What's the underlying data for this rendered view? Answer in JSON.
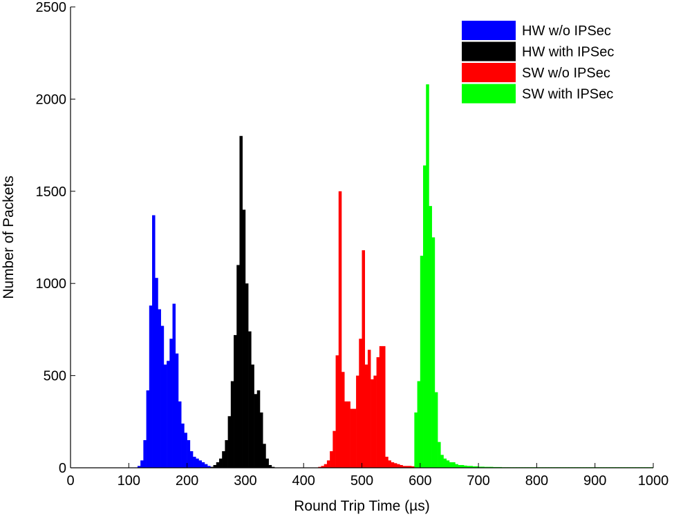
{
  "chart_data": {
    "type": "bar",
    "subtype": "histogram",
    "xlabel": "Round Trip Time (µs)",
    "ylabel": "Number of Packets",
    "xlim": [
      0,
      1000
    ],
    "ylim": [
      0,
      2500
    ],
    "xticks": [
      "0",
      "100",
      "200",
      "300",
      "400",
      "500",
      "600",
      "700",
      "800",
      "900",
      "1000"
    ],
    "yticks": [
      "0",
      "500",
      "1000",
      "1500",
      "2000",
      "2500"
    ],
    "grid": false,
    "legend_position": "top-right",
    "bin_width": 5,
    "series": [
      {
        "name": "HW w/o IPSec",
        "color": "#0000ff",
        "bins_start": 110,
        "values": [
          2,
          10,
          40,
          150,
          420,
          880,
          1370,
          1030,
          860,
          770,
          560,
          580,
          700,
          890,
          620,
          360,
          240,
          190,
          150,
          90,
          60,
          50,
          40,
          30,
          20,
          10,
          5
        ]
      },
      {
        "name": "HW with IPSec",
        "color": "#000000",
        "bins_start": 240,
        "values": [
          5,
          15,
          30,
          50,
          90,
          150,
          280,
          470,
          720,
          1100,
          1800,
          1400,
          1000,
          740,
          560,
          400,
          420,
          300,
          130,
          50,
          15,
          5
        ]
      },
      {
        "name": "SW w/o IPSec",
        "color": "#ff0000",
        "bins_start": 425,
        "values": [
          5,
          10,
          20,
          40,
          90,
          200,
          610,
          1500,
          520,
          360,
          360,
          320,
          320,
          500,
          700,
          1180,
          560,
          640,
          480,
          500,
          600,
          660,
          660,
          60,
          40,
          30,
          25,
          20,
          15,
          10,
          10,
          10,
          8,
          8,
          6,
          5,
          5,
          5,
          4,
          4,
          3,
          3,
          3,
          2,
          2,
          2,
          2,
          2,
          2,
          2,
          2,
          2,
          2,
          2,
          2,
          2,
          2,
          2,
          2,
          2,
          2,
          2,
          2,
          2,
          2,
          2,
          2,
          2,
          2,
          2,
          2,
          2,
          2,
          2,
          2,
          2,
          2,
          2,
          2,
          2,
          2,
          2,
          2,
          2,
          2,
          2,
          2,
          2,
          2,
          2,
          2,
          2,
          2,
          2,
          2,
          2,
          2,
          2,
          2,
          2,
          2,
          2,
          2,
          2,
          2,
          2,
          2,
          2,
          2,
          2,
          2,
          2,
          2,
          2,
          2,
          2
        ]
      },
      {
        "name": "SW with IPSec",
        "color": "#00ff00",
        "bins_start": 590,
        "values": [
          300,
          470,
          1150,
          1640,
          2080,
          1420,
          1250,
          410,
          140,
          70,
          50,
          40,
          30,
          30,
          20,
          15,
          15,
          12,
          10,
          10,
          8,
          8,
          6,
          6,
          5,
          5,
          5,
          4,
          4,
          4,
          3,
          3,
          3,
          3,
          3,
          3,
          3,
          3,
          3,
          3,
          3,
          3,
          3,
          3,
          3,
          3,
          3,
          3,
          3,
          3,
          3,
          3,
          3,
          3,
          3,
          3,
          3,
          3,
          3,
          3,
          3,
          3,
          3,
          3,
          3,
          3,
          3,
          3,
          3,
          3,
          3,
          3,
          3,
          3,
          3,
          3,
          3,
          3,
          3,
          3,
          3,
          3
        ]
      }
    ]
  }
}
